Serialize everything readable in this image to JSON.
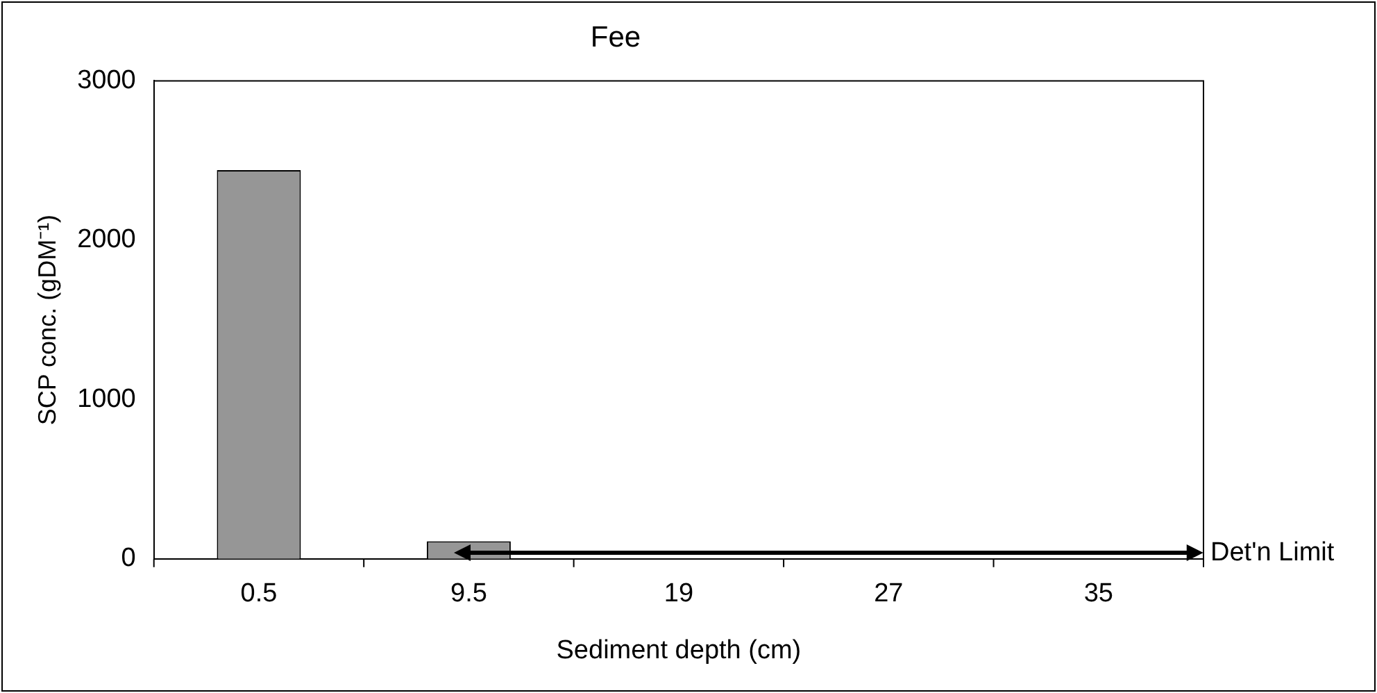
{
  "chart_data": {
    "type": "bar",
    "title": "Fee",
    "xlabel": "Sediment depth (cm)",
    "ylabel": "SCP conc. (gDM⁻¹)",
    "categories": [
      "0.5",
      "9.5",
      "19",
      "27",
      "35"
    ],
    "values": [
      2440,
      110,
      0,
      0,
      0
    ],
    "color": "#969696",
    "ylim": [
      0,
      3000
    ],
    "yticks": [
      0,
      1000,
      2000,
      3000
    ],
    "grid": false,
    "annotations": [
      "Det'n Limit"
    ]
  }
}
